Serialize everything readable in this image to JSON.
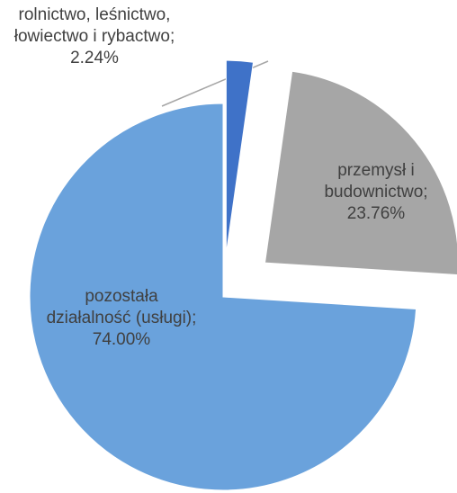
{
  "chart_data": {
    "type": "pie",
    "categories": [
      "rolnictwo, leśnictwo, łowiectwo i rybactwo",
      "przemysł i budownictwo",
      "pozostała działalność (usługi)"
    ],
    "values": [
      2.24,
      23.76,
      74.0
    ],
    "value_labels": [
      "2.24%",
      "23.76%",
      "74.00%"
    ],
    "label_separator": "; ",
    "colors": [
      "#3f72c8",
      "#a6a6a6",
      "#6aa2dc"
    ]
  }
}
